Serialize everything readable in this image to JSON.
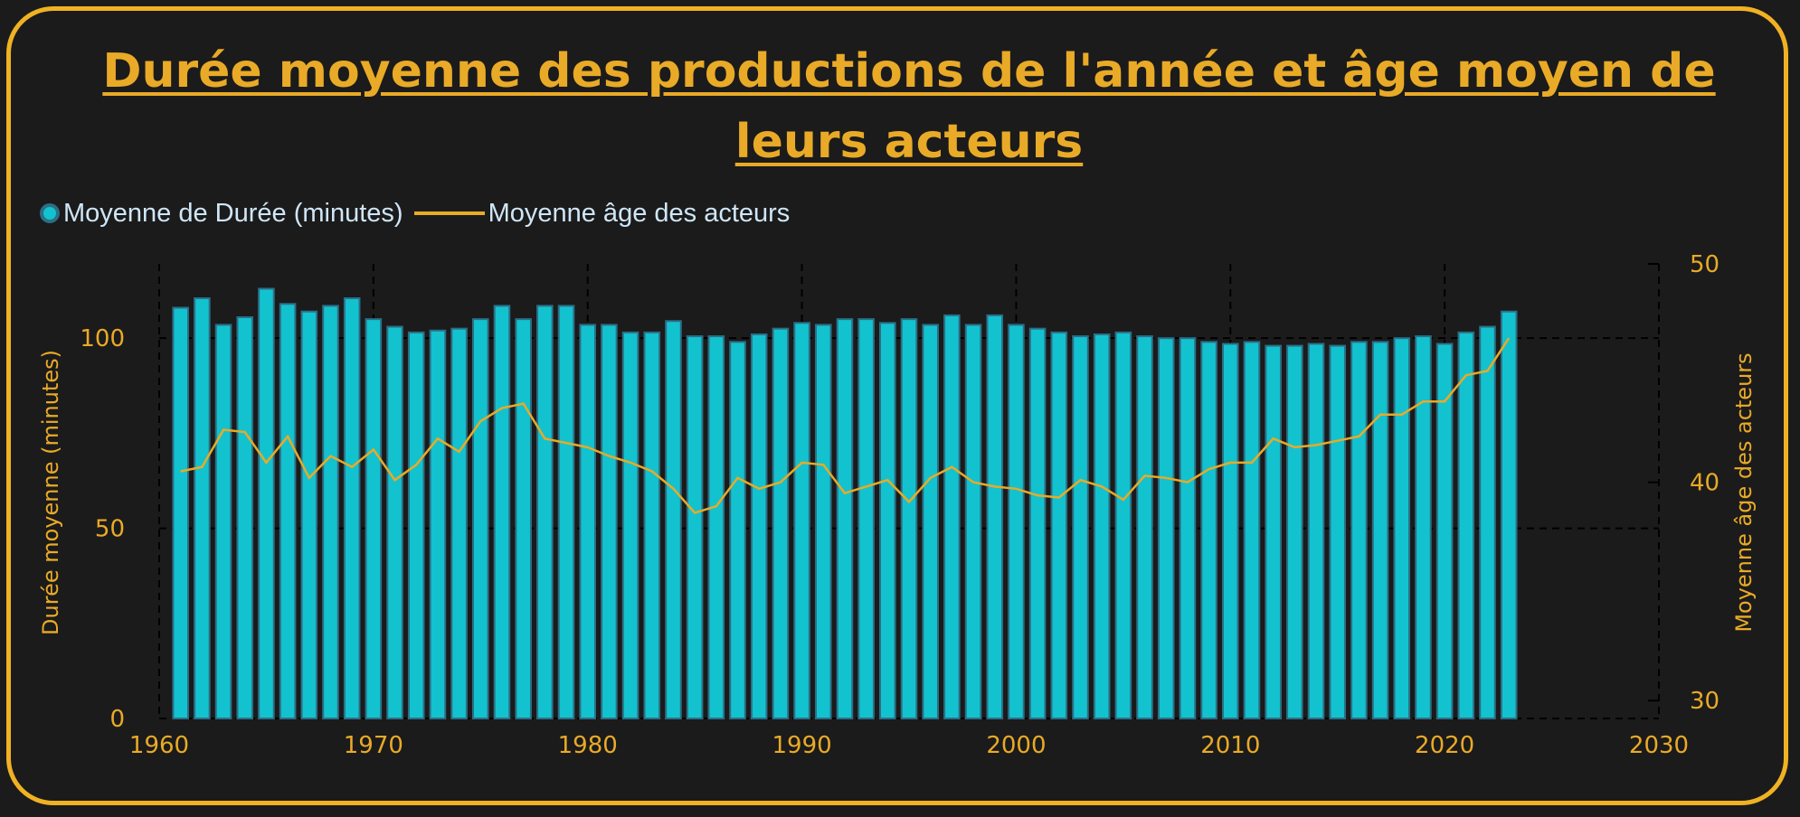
{
  "title": "Durée moyenne des productions de l'année et âge moyen de leurs acteurs",
  "legend": {
    "bar_label": "Moyenne de Durée (minutes)",
    "line_label": "Moyenne âge des acteurs"
  },
  "colors": {
    "accent": "#e9aa27",
    "bar_fill": "#13c2cf",
    "bar_stroke": "#2b6f86",
    "legend_text": "#cfe6f7",
    "background": "#1b1b1b",
    "border": "#f0b124"
  },
  "chart_data": {
    "type": "bar",
    "title": "Durée moyenne des productions de l'année et âge moyen de leurs acteurs",
    "xlabel": "",
    "ylabel": "Durée moyenne (minutes)",
    "y2label": "Moyenne âge des acteurs",
    "xlim": [
      1960,
      2030
    ],
    "ylim": [
      0,
      120
    ],
    "y2lim": [
      25,
      50
    ],
    "xticks": [
      1960,
      1970,
      1980,
      1990,
      2000,
      2010,
      2020,
      2030
    ],
    "yticks": [
      0,
      50,
      100
    ],
    "y2ticks": [
      30,
      40,
      50
    ],
    "grid": true,
    "legend_position": "top-left",
    "x": [
      1961,
      1962,
      1963,
      1964,
      1965,
      1966,
      1967,
      1968,
      1969,
      1970,
      1971,
      1972,
      1973,
      1974,
      1975,
      1976,
      1977,
      1978,
      1979,
      1980,
      1981,
      1982,
      1983,
      1984,
      1985,
      1986,
      1987,
      1988,
      1989,
      1990,
      1991,
      1992,
      1993,
      1994,
      1995,
      1996,
      1997,
      1998,
      1999,
      2000,
      2001,
      2002,
      2003,
      2004,
      2005,
      2006,
      2007,
      2008,
      2009,
      2010,
      2011,
      2012,
      2013,
      2014,
      2015,
      2016,
      2017,
      2018,
      2019,
      2020,
      2021,
      2022,
      2023
    ],
    "series": [
      {
        "name": "Moyenne de Durée (minutes)",
        "type": "bar",
        "axis": "left",
        "values": [
          108,
          110.5,
          103.5,
          105.5,
          113,
          109,
          107,
          108.5,
          110.5,
          105,
          103,
          101.5,
          102,
          102.5,
          105,
          108.5,
          105,
          108.5,
          108.5,
          103.5,
          103.5,
          101.5,
          101.5,
          104.5,
          100.5,
          100.5,
          99,
          101,
          102.5,
          104,
          103.5,
          105,
          105,
          104,
          105,
          103.5,
          106,
          103.5,
          106,
          103.5,
          102.5,
          101.5,
          100.5,
          101,
          101.5,
          100.5,
          100,
          100,
          99,
          98.5,
          99,
          98,
          98,
          98.5,
          98,
          99,
          99,
          100,
          100.5,
          98.5,
          101.5,
          103,
          107
        ]
      },
      {
        "name": "Moyenne âge des acteurs",
        "type": "line",
        "axis": "right",
        "values": [
          40.5,
          40.7,
          42.4,
          42.3,
          40.9,
          42.1,
          40.2,
          41.2,
          40.7,
          41.5,
          40.1,
          40.8,
          42.0,
          41.4,
          42.8,
          43.4,
          43.6,
          42.0,
          41.8,
          41.6,
          41.2,
          40.9,
          40.5,
          39.7,
          38.6,
          38.9,
          40.2,
          39.7,
          40.0,
          40.9,
          40.8,
          39.5,
          39.8,
          40.1,
          39.1,
          40.2,
          40.7,
          40.0,
          39.8,
          39.7,
          39.4,
          39.3,
          40.1,
          39.8,
          39.2,
          40.3,
          40.2,
          40.0,
          40.6,
          40.9,
          40.9,
          42.0,
          41.6,
          41.7,
          41.9,
          42.1,
          43.1,
          43.1,
          43.7,
          43.7,
          44.9,
          45.1,
          46.6
        ]
      }
    ]
  }
}
